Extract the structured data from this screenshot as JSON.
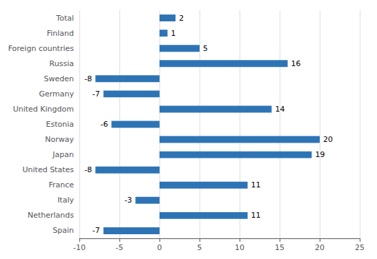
{
  "chart_data": {
    "type": "bar",
    "orientation": "horizontal",
    "categories": [
      "Spain",
      "Netherlands",
      "Italy",
      "France",
      "United States",
      "Japan",
      "Norway",
      "Estonia",
      "United Kingdom",
      "Germany",
      "Sweden",
      "Russia",
      "Foreign countries",
      "Finland",
      "Total"
    ],
    "values": [
      -7,
      11,
      -3,
      11,
      -8,
      19,
      20,
      -6,
      14,
      -7,
      -8,
      16,
      5,
      1,
      2
    ],
    "color": "#2E74B5",
    "xlim": [
      -10,
      25
    ],
    "xticks": [
      -10,
      -5,
      0,
      5,
      10,
      15,
      20,
      25
    ],
    "grid": true,
    "data_labels": true
  }
}
